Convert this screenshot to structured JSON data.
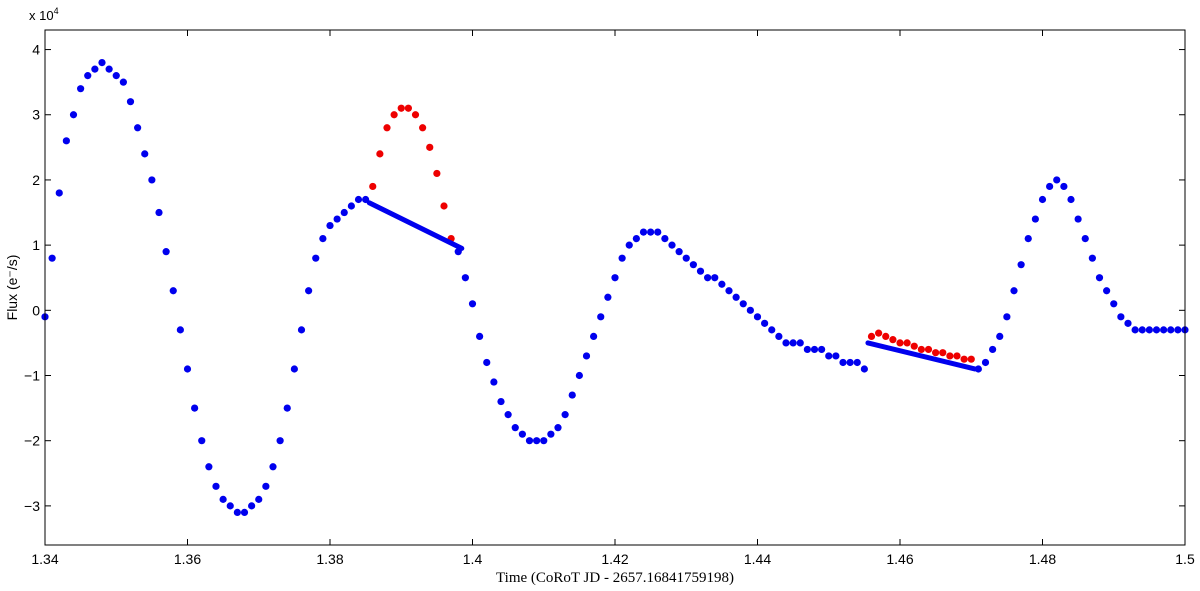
{
  "chart_data": {
    "type": "scatter",
    "title": "",
    "xlabel": "Time (CoRoT JD - 2657.16841759198)",
    "ylabel": "Flux (e⁻/s)",
    "y_multiplier": "x 10",
    "y_multiplier_exp": "4",
    "xlim": [
      1.34,
      1.5
    ],
    "ylim": [
      -3.6,
      4.3
    ],
    "x_ticks": [
      1.34,
      1.36,
      1.38,
      1.4,
      1.42,
      1.44,
      1.46,
      1.48,
      1.5
    ],
    "x_tick_labels": [
      "1.34",
      "1.36",
      "1.38",
      "1.4",
      "1.42",
      "1.44",
      "1.46",
      "1.48",
      "1.5"
    ],
    "y_ticks": [
      -3,
      -2,
      -1,
      0,
      1,
      2,
      3,
      4
    ],
    "y_tick_labels": [
      "−3",
      "−2",
      "−1",
      "0",
      "1",
      "2",
      "3",
      "4"
    ],
    "grid": false,
    "colors": {
      "observed": "#0000ee",
      "masked": "#ee0000",
      "interpolation": "#0000ee"
    },
    "series": [
      {
        "color_key": "observed",
        "kind": "points",
        "x": [
          1.34,
          1.341,
          1.342,
          1.343,
          1.344,
          1.345,
          1.346,
          1.347,
          1.348,
          1.349,
          1.35,
          1.351,
          1.352,
          1.353,
          1.354,
          1.355,
          1.356,
          1.357,
          1.358,
          1.359,
          1.36,
          1.361,
          1.362,
          1.363,
          1.364,
          1.365,
          1.366,
          1.367,
          1.368,
          1.369,
          1.37,
          1.371,
          1.372,
          1.373,
          1.374,
          1.375,
          1.376,
          1.377,
          1.378,
          1.379,
          1.38,
          1.381,
          1.382,
          1.383,
          1.384,
          1.385,
          1.398,
          1.399,
          1.4,
          1.401,
          1.402,
          1.403,
          1.404,
          1.405,
          1.406,
          1.407,
          1.408,
          1.409,
          1.41,
          1.411,
          1.412,
          1.413,
          1.414,
          1.415,
          1.416,
          1.417,
          1.418,
          1.419,
          1.42,
          1.421,
          1.422,
          1.423,
          1.424,
          1.425,
          1.426,
          1.427,
          1.428,
          1.429,
          1.43,
          1.431,
          1.432,
          1.433,
          1.434,
          1.435,
          1.436,
          1.437,
          1.438,
          1.439,
          1.44,
          1.441,
          1.442,
          1.443,
          1.444,
          1.445,
          1.446,
          1.447,
          1.448,
          1.449,
          1.45,
          1.451,
          1.452,
          1.453,
          1.454,
          1.455,
          1.471,
          1.472,
          1.473,
          1.474,
          1.475,
          1.476,
          1.477,
          1.478,
          1.479,
          1.48,
          1.481,
          1.482,
          1.483,
          1.484,
          1.485,
          1.486,
          1.487,
          1.488,
          1.489,
          1.49,
          1.491,
          1.492,
          1.493,
          1.494,
          1.495,
          1.496,
          1.497,
          1.498,
          1.499,
          1.5
        ],
        "y": [
          -0.1,
          0.8,
          1.8,
          2.6,
          3.0,
          3.4,
          3.6,
          3.7,
          3.8,
          3.7,
          3.6,
          3.5,
          3.2,
          2.8,
          2.4,
          2.0,
          1.5,
          0.9,
          0.3,
          -0.3,
          -0.9,
          -1.5,
          -2.0,
          -2.4,
          -2.7,
          -2.9,
          -3.0,
          -3.1,
          -3.1,
          -3.0,
          -2.9,
          -2.7,
          -2.4,
          -2.0,
          -1.5,
          -0.9,
          -0.3,
          0.3,
          0.8,
          1.1,
          1.3,
          1.4,
          1.5,
          1.6,
          1.7,
          1.7,
          0.9,
          0.5,
          0.1,
          -0.4,
          -0.8,
          -1.1,
          -1.4,
          -1.6,
          -1.8,
          -1.9,
          -2.0,
          -2.0,
          -2.0,
          -1.9,
          -1.8,
          -1.6,
          -1.3,
          -1.0,
          -0.7,
          -0.4,
          -0.1,
          0.2,
          0.5,
          0.8,
          1.0,
          1.1,
          1.2,
          1.2,
          1.2,
          1.1,
          1.0,
          0.9,
          0.8,
          0.7,
          0.6,
          0.5,
          0.5,
          0.4,
          0.3,
          0.2,
          0.1,
          0.0,
          -0.1,
          -0.2,
          -0.3,
          -0.4,
          -0.5,
          -0.5,
          -0.5,
          -0.6,
          -0.6,
          -0.6,
          -0.7,
          -0.7,
          -0.8,
          -0.8,
          -0.8,
          -0.9,
          -0.9,
          -0.8,
          -0.6,
          -0.4,
          -0.1,
          0.3,
          0.7,
          1.1,
          1.4,
          1.7,
          1.9,
          2.0,
          1.9,
          1.7,
          1.4,
          1.1,
          0.8,
          0.5,
          0.3,
          0.1,
          -0.1,
          -0.2,
          -0.3,
          -0.3,
          -0.3,
          -0.3,
          -0.3,
          -0.3,
          -0.3,
          -0.3
        ]
      },
      {
        "color_key": "masked",
        "kind": "points",
        "x": [
          1.386,
          1.387,
          1.388,
          1.389,
          1.39,
          1.391,
          1.392,
          1.393,
          1.394,
          1.395,
          1.396,
          1.397,
          1.456,
          1.457,
          1.458,
          1.459,
          1.46,
          1.461,
          1.462,
          1.463,
          1.464,
          1.465,
          1.466,
          1.467,
          1.468,
          1.469,
          1.47
        ],
        "y": [
          1.9,
          2.4,
          2.8,
          3.0,
          3.1,
          3.1,
          3.0,
          2.8,
          2.5,
          2.1,
          1.6,
          1.1,
          -0.4,
          -0.35,
          -0.4,
          -0.45,
          -0.5,
          -0.5,
          -0.55,
          -0.6,
          -0.6,
          -0.65,
          -0.65,
          -0.7,
          -0.7,
          -0.75,
          -0.75
        ]
      },
      {
        "color_key": "interpolation",
        "kind": "segments",
        "segments": [
          {
            "x": [
              1.3855,
              1.3985
            ],
            "y": [
              1.65,
              0.95
            ]
          },
          {
            "x": [
              1.4555,
              1.4705
            ],
            "y": [
              -0.5,
              -0.9
            ]
          }
        ]
      }
    ]
  }
}
